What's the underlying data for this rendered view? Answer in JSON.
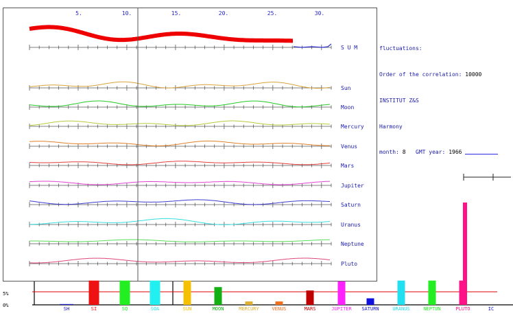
{
  "header": {
    "day_ticks": [
      "5.",
      "10.",
      "15.",
      "20.",
      "25.",
      "30."
    ]
  },
  "info_panel": {
    "line1": "fluctuations:",
    "correlation_label": "Order of the correlation:",
    "correlation_value": "10000",
    "institute": "INSTITUT Z&S",
    "mode": "Harmony",
    "month_label": "month:",
    "month_value": "8",
    "year_label": "GMT year:",
    "year_value": "1966"
  },
  "colors": {
    "frame": "#444444",
    "tick_label": "#2222cc",
    "row_label": "#1a1ab0",
    "sum": "#ee0000",
    "sum_tail": "#3333cc",
    "reference_line": "#dd0000"
  },
  "rows": [
    {
      "id": "sum",
      "label": "S U M",
      "color": "#ee0000"
    },
    {
      "id": "sun",
      "label": "Sun",
      "color": "#d9a23a"
    },
    {
      "id": "moon",
      "label": "Moon",
      "color": "#22c922"
    },
    {
      "id": "mercury",
      "label": "Mercury",
      "color": "#b7c93a"
    },
    {
      "id": "venus",
      "label": "Venus",
      "color": "#e07f27"
    },
    {
      "id": "mars",
      "label": "Mars",
      "color": "#e03b3b"
    },
    {
      "id": "jupiter",
      "label": "Jupiter",
      "color": "#e040d0"
    },
    {
      "id": "saturn",
      "label": "Saturn",
      "color": "#3b3bcf"
    },
    {
      "id": "uranus",
      "label": "Uranus",
      "color": "#33dddd"
    },
    {
      "id": "neptune",
      "label": "Neptune",
      "color": "#55dd55"
    },
    {
      "id": "pluto",
      "label": "Pluto",
      "color": "#e0457a"
    }
  ],
  "bar_chart": {
    "axis_labels": [
      "5%",
      "0%"
    ],
    "reference_percent": 5,
    "bars": [
      {
        "label": "SH",
        "value": 0.3,
        "color": "#2222cc"
      },
      {
        "label": "SI",
        "value": 9.3,
        "color": "#ee1111"
      },
      {
        "label": "SQ",
        "value": 9.3,
        "color": "#22ee22"
      },
      {
        "label": "SOA",
        "value": 9.3,
        "color": "#22f0f0"
      },
      {
        "label": "SUN",
        "value": 9.3,
        "color": "#f5c000"
      },
      {
        "label": "MOON",
        "value": 6.8,
        "color": "#12b012"
      },
      {
        "label": "MERCURY",
        "value": 1.3,
        "color": "#e0b030"
      },
      {
        "label": "VENUS",
        "value": 1.3,
        "color": "#f07020"
      },
      {
        "label": "MARS",
        "value": 5.5,
        "color": "#c00000"
      },
      {
        "label": "JUPITER",
        "value": 9.0,
        "color": "#ff22ff"
      },
      {
        "label": "SATURN",
        "value": 2.5,
        "color": "#1111dd"
      },
      {
        "label": "URANUS",
        "value": 9.3,
        "color": "#22e0f0"
      },
      {
        "label": "NEPTUN",
        "value": 9.3,
        "color": "#22ee22"
      },
      {
        "label": "PLUTO",
        "value": 9.3,
        "color": "#ff1188"
      },
      {
        "label": "IC",
        "value": 0,
        "color": "#2222cc"
      }
    ],
    "pluto_extra_bar_value": 44
  }
}
